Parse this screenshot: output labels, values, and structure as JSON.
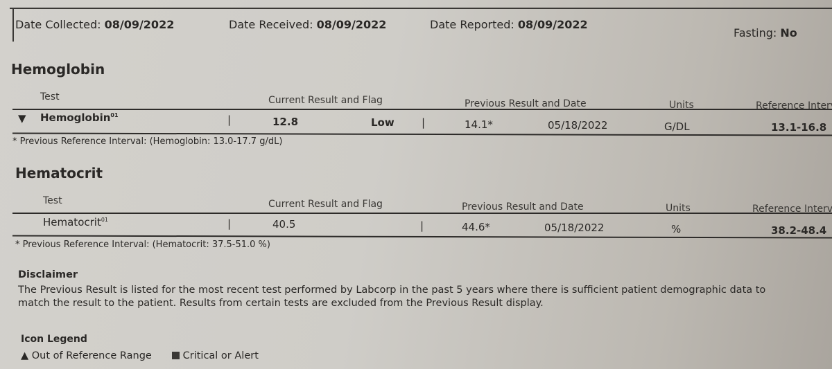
{
  "header": {
    "date_collected_label": "Date Collected:",
    "date_collected": "08/09/2022",
    "date_received_label": "Date Received:",
    "date_received": "08/09/2022",
    "date_reported_label": "Date Reported:",
    "date_reported": "08/09/2022",
    "fasting_label": "Fasting:",
    "fasting": "No"
  },
  "columns": {
    "test": "Test",
    "current": "Current Result and Flag",
    "previous": "Previous Result and Date",
    "units": "Units",
    "reference": "Reference Interval"
  },
  "sections": [
    {
      "title": "Hemoglobin",
      "row": {
        "indicator": "▼",
        "test": "Hemoglobin",
        "superscript": "01",
        "result": "12.8",
        "flag": "Low",
        "previous": "14.1*",
        "previous_date": "05/18/2022",
        "units": "G/DL",
        "reference": "13.1-16.8"
      },
      "footnote": "* Previous Reference Interval: (Hemoglobin: 13.0-17.7 g/dL)"
    },
    {
      "title": "Hematocrit",
      "row": {
        "test": "Hematocrit",
        "superscript": "01",
        "result": "40.5",
        "flag": "",
        "previous": "44.6*",
        "previous_date": "05/18/2022",
        "units": "%",
        "reference": "38.2-48.4"
      },
      "footnote": "* Previous Reference Interval: (Hematocrit: 37.5-51.0 %)"
    }
  ],
  "disclaimer": {
    "title": "Disclaimer",
    "line1": "The Previous Result is listed for the most recent test performed by Labcorp in the past 5 years where there is sufficient patient demographic data to",
    "line2": "match the result to the patient. Results from certain tests are excluded from the Previous Result display."
  },
  "legend": {
    "title": "Icon Legend",
    "items": [
      {
        "icon": "triangle-icon",
        "label": "Out of Reference Range"
      },
      {
        "icon": "square-icon",
        "label": "Critical or Alert"
      }
    ]
  }
}
